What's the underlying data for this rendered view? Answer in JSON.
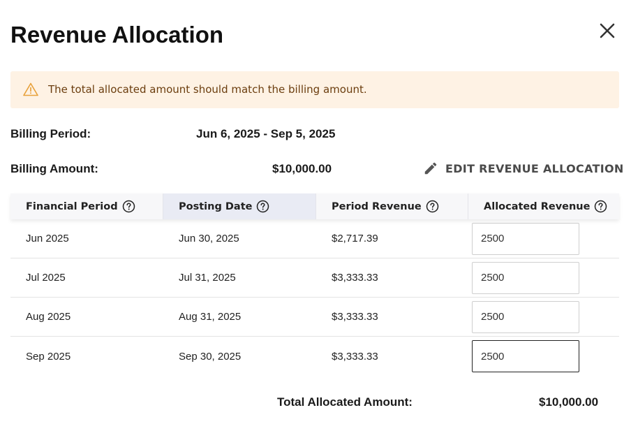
{
  "dialog": {
    "title": "Revenue Allocation"
  },
  "alert": {
    "message": "The total allocated amount should match the billing amount.",
    "icon": "warning-icon"
  },
  "billing": {
    "period_label": "Billing Period:",
    "period_value": "Jun 6, 2025 - Sep 5, 2025",
    "amount_label": "Billing Amount:",
    "amount_value": "$10,000.00"
  },
  "edit_button": {
    "label": "EDIT REVENUE ALLOCATION",
    "icon": "pencil-icon"
  },
  "table": {
    "columns": [
      {
        "label": "Financial Period"
      },
      {
        "label": "Posting Date"
      },
      {
        "label": "Period Revenue"
      },
      {
        "label": "Allocated Revenue"
      }
    ],
    "rows": [
      {
        "financial_period": "Jun 2025",
        "posting_date": "Jun 30, 2025",
        "period_revenue": "$2,717.39",
        "allocated": "2500"
      },
      {
        "financial_period": "Jul 2025",
        "posting_date": "Jul 31, 2025",
        "period_revenue": "$3,333.33",
        "allocated": "2500"
      },
      {
        "financial_period": "Aug 2025",
        "posting_date": "Aug 31, 2025",
        "period_revenue": "$3,333.33",
        "allocated": "2500"
      },
      {
        "financial_period": "Sep 2025",
        "posting_date": "Sep 30, 2025",
        "period_revenue": "$3,333.33",
        "allocated": "2500"
      }
    ]
  },
  "total": {
    "label": "Total Allocated Amount:",
    "value": "$10,000.00"
  },
  "colors": {
    "alert_background": "#fef2e4",
    "alert_icon": "#e8a13a",
    "sorted_header": "#e9ebf4"
  }
}
